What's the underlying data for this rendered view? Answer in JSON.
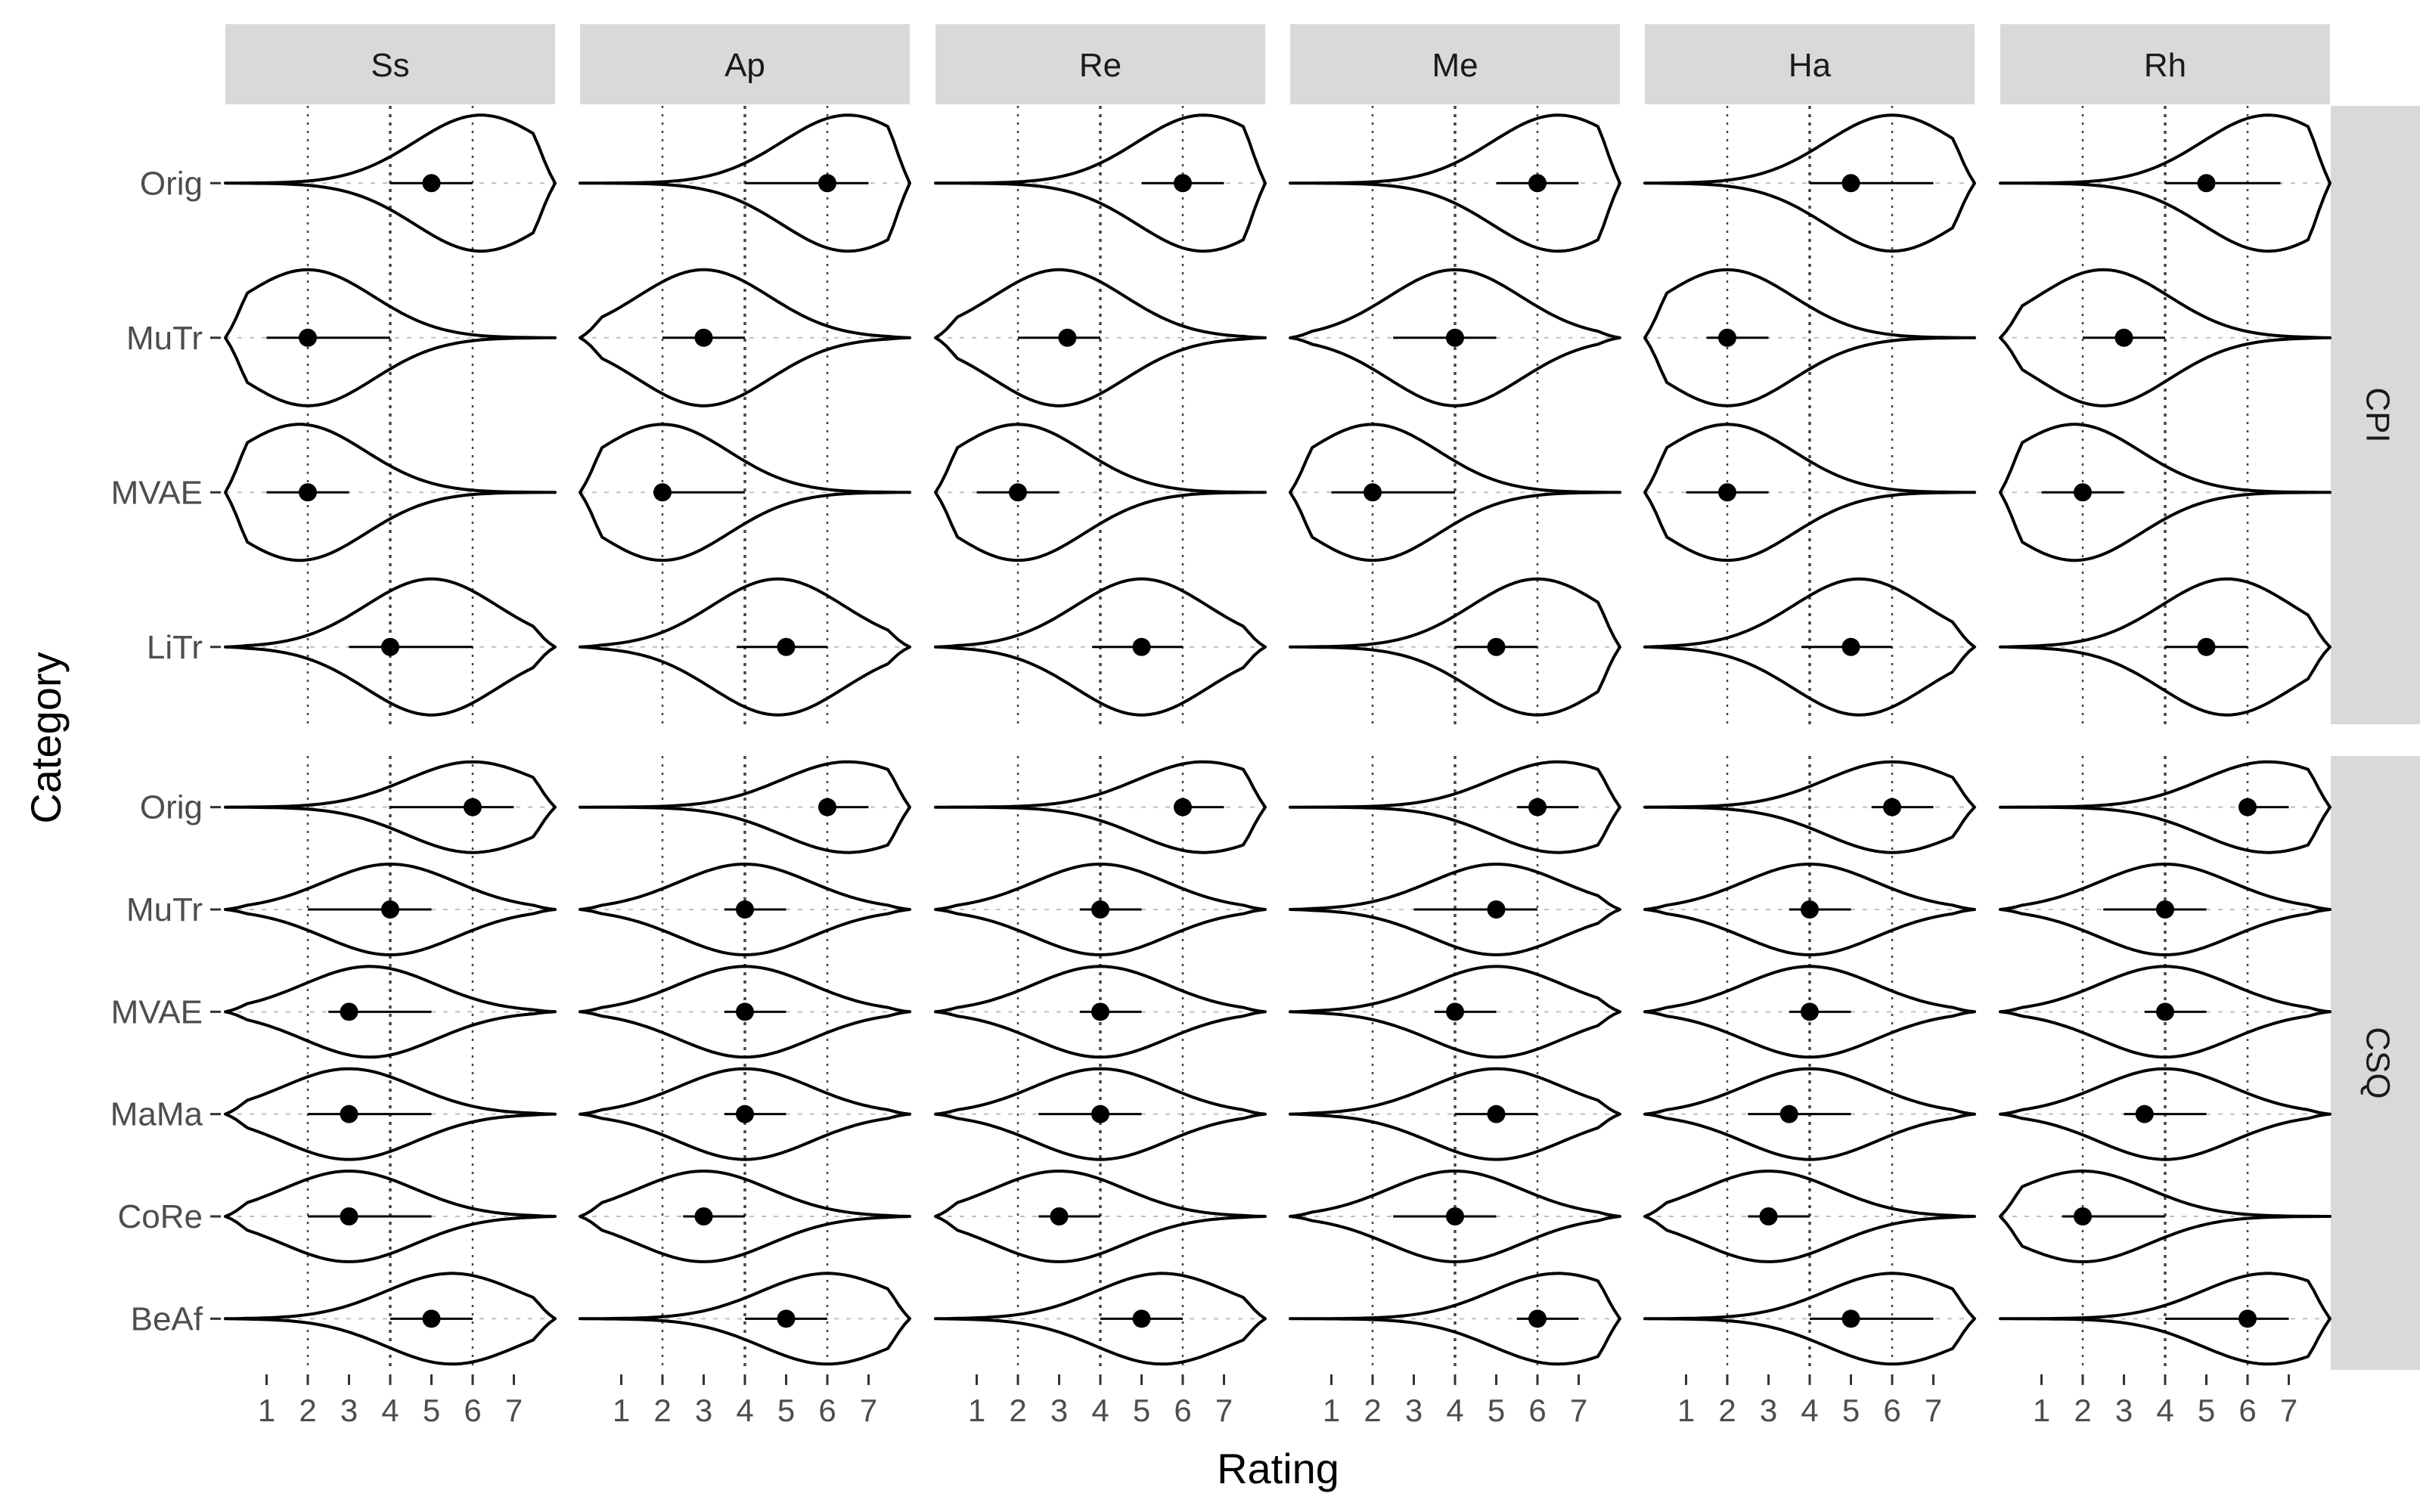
{
  "chart_data": {
    "type": "violin",
    "xlabel": "Rating",
    "ylabel": "Category",
    "xlim": [
      0,
      8
    ],
    "xticks": [
      1,
      2,
      3,
      4,
      5,
      6,
      7
    ],
    "reference_lines": [
      2,
      4,
      6
    ],
    "facet_columns": [
      "Ss",
      "Ap",
      "Re",
      "Me",
      "Ha",
      "Rh"
    ],
    "facet_rows": [
      {
        "name": "CPI",
        "categories": [
          "Orig",
          "MuTr",
          "MVAE",
          "LiTr"
        ],
        "mean": [
          [
            5.0,
            6.0,
            6.0,
            6.0,
            5.0,
            5.0
          ],
          [
            2.0,
            3.0,
            3.2,
            4.0,
            2.0,
            3.0
          ],
          [
            2.0,
            2.0,
            2.0,
            2.0,
            2.0,
            2.0
          ],
          [
            4.0,
            5.0,
            5.0,
            5.0,
            5.0,
            5.0
          ]
        ],
        "interval": [
          [
            [
              4.0,
              6.0
            ],
            [
              4.0,
              7.0
            ],
            [
              5.0,
              7.0
            ],
            [
              5.0,
              7.0
            ],
            [
              4.0,
              7.0
            ],
            [
              4.0,
              6.8
            ]
          ],
          [
            [
              1.0,
              4.0
            ],
            [
              2.0,
              4.0
            ],
            [
              2.0,
              4.0
            ],
            [
              2.5,
              5.0
            ],
            [
              1.5,
              3.0
            ],
            [
              2.0,
              4.0
            ]
          ],
          [
            [
              1.0,
              3.0
            ],
            [
              2.0,
              4.0
            ],
            [
              1.0,
              3.0
            ],
            [
              1.0,
              4.0
            ],
            [
              1.0,
              3.0
            ],
            [
              1.0,
              3.0
            ]
          ],
          [
            [
              3.0,
              6.0
            ],
            [
              3.8,
              6.0
            ],
            [
              3.8,
              6.0
            ],
            [
              4.0,
              6.0
            ],
            [
              3.8,
              6.0
            ],
            [
              4.0,
              6.0
            ]
          ]
        ],
        "peak": [
          [
            6.2,
            6.5,
            6.5,
            6.5,
            6.0,
            6.5
          ],
          [
            2.0,
            3.0,
            3.0,
            4.0,
            2.0,
            2.5
          ],
          [
            1.8,
            2.0,
            2.0,
            2.0,
            2.0,
            1.8
          ],
          [
            5.0,
            4.8,
            5.0,
            6.0,
            5.2,
            5.5
          ]
        ]
      },
      {
        "name": "CSQ",
        "categories": [
          "Orig",
          "MuTr",
          "MVAE",
          "MaMa",
          "CoRe",
          "BeAf"
        ],
        "mean": [
          [
            6.0,
            6.0,
            6.0,
            6.0,
            6.0,
            6.0
          ],
          [
            4.0,
            4.0,
            4.0,
            5.0,
            4.0,
            4.0
          ],
          [
            3.0,
            4.0,
            4.0,
            4.0,
            4.0,
            4.0
          ],
          [
            3.0,
            4.0,
            4.0,
            5.0,
            3.5,
            3.5
          ],
          [
            3.0,
            3.0,
            3.0,
            4.0,
            3.0,
            2.0
          ],
          [
            5.0,
            5.0,
            5.0,
            6.0,
            5.0,
            6.0
          ]
        ],
        "interval": [
          [
            [
              4.0,
              7.0
            ],
            [
              6.0,
              7.0
            ],
            [
              6.0,
              7.0
            ],
            [
              5.5,
              7.0
            ],
            [
              5.5,
              7.0
            ],
            [
              6.0,
              7.0
            ]
          ],
          [
            [
              2.0,
              5.0
            ],
            [
              3.5,
              5.0
            ],
            [
              3.5,
              5.0
            ],
            [
              3.0,
              6.0
            ],
            [
              3.5,
              5.0
            ],
            [
              2.5,
              5.0
            ]
          ],
          [
            [
              2.5,
              5.0
            ],
            [
              3.5,
              5.0
            ],
            [
              3.5,
              5.0
            ],
            [
              3.5,
              5.0
            ],
            [
              3.5,
              5.0
            ],
            [
              3.5,
              5.0
            ]
          ],
          [
            [
              2.0,
              5.0
            ],
            [
              3.5,
              5.0
            ],
            [
              2.5,
              5.0
            ],
            [
              4.0,
              6.0
            ],
            [
              2.5,
              5.0
            ],
            [
              3.0,
              5.0
            ]
          ],
          [
            [
              2.0,
              5.0
            ],
            [
              2.5,
              4.0
            ],
            [
              2.5,
              4.0
            ],
            [
              2.5,
              5.0
            ],
            [
              2.5,
              4.0
            ],
            [
              1.5,
              4.0
            ]
          ],
          [
            [
              4.0,
              6.0
            ],
            [
              4.0,
              6.0
            ],
            [
              4.0,
              6.0
            ],
            [
              5.5,
              7.0
            ],
            [
              4.0,
              7.0
            ],
            [
              4.0,
              7.0
            ]
          ]
        ],
        "peak": [
          [
            6.0,
            6.5,
            6.5,
            6.5,
            6.0,
            6.5
          ],
          [
            4.0,
            4.0,
            4.0,
            5.0,
            4.0,
            4.0
          ],
          [
            3.5,
            4.0,
            4.0,
            5.0,
            4.0,
            4.0
          ],
          [
            3.0,
            4.0,
            4.0,
            5.0,
            4.0,
            4.0
          ],
          [
            3.0,
            3.0,
            3.0,
            4.0,
            3.0,
            2.0
          ],
          [
            5.5,
            6.0,
            5.5,
            6.5,
            6.0,
            6.5
          ]
        ]
      }
    ],
    "colors": {
      "strip_bg": "#d9d9d9",
      "violin_stroke": "#000000",
      "point": "#000000",
      "reference_line": "#444444",
      "axis_text": "#4d4d4d",
      "grid_dash": "#bfbfbf"
    }
  }
}
